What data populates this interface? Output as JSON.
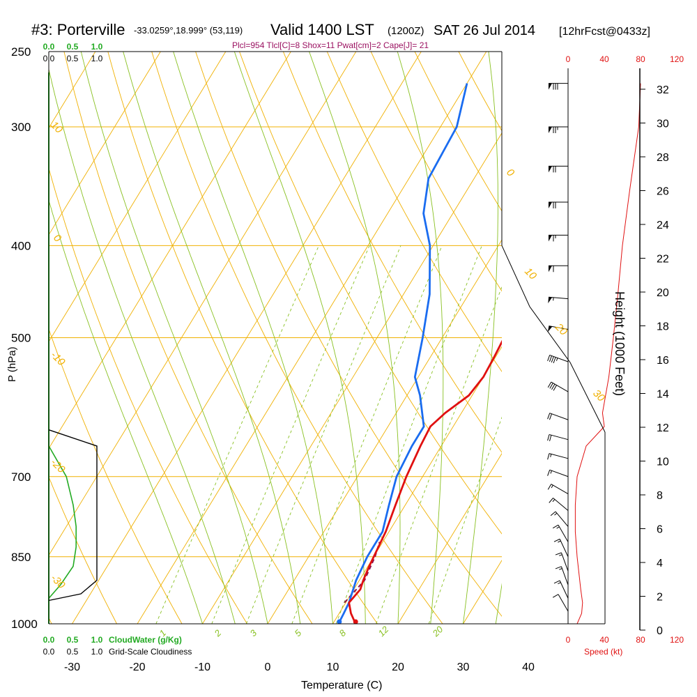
{
  "header": {
    "station": "#3: Porterville",
    "coords": "-33.0259°,18.999° (53,119)",
    "valid": "Valid 1400 LST",
    "utc": "(1200Z)",
    "date": "SAT 26 Jul 2014",
    "forecast": "[12hrFcst@0433z]",
    "indices": "Plcl=954 Tlcl[C]=8 Shox=11 Pwat[cm]=2 Cape[J]= 21"
  },
  "colors": {
    "temperature": "#e01010",
    "dewpoint": "#1a6cf0",
    "isotherm": "#f0b000",
    "dry_adiabat": "#f0b000",
    "moist_adiabat": "#88c020",
    "mixing_ratio": "#88c020",
    "cloud_water": "#22aa22",
    "speed": "#e01010",
    "barb": "#000000"
  },
  "cloud": {
    "water_label": "CloudWater (g/Kg)",
    "cloudiness_label": "Grid-Scale Cloudiness",
    "water_ticks": [
      "0.0",
      "0.5",
      "1.0"
    ],
    "cloudiness_ticks": [
      "0.0",
      "0.5",
      "1.0"
    ]
  },
  "speed_axis": {
    "label": "Speed (kt)",
    "ticks": [
      "0",
      "40",
      "80",
      "120"
    ]
  },
  "chart_data": {
    "type": "skew-t",
    "xlabel": "Temperature (C)",
    "ylabel": "P (hPa)",
    "y2label": "Height (1000 Feet)",
    "x_ticks": [
      -30,
      -20,
      -10,
      0,
      10,
      20,
      30,
      40
    ],
    "p_ticks": [
      250,
      300,
      400,
      500,
      700,
      850,
      1000
    ],
    "height_ticks": [
      0,
      2,
      4,
      6,
      8,
      10,
      12,
      14,
      16,
      18,
      20,
      22,
      24,
      26,
      28,
      30,
      32
    ],
    "temperature_profile": [
      {
        "p": 1000,
        "t": 13.5
      },
      {
        "p": 975,
        "t": 11.8
      },
      {
        "p": 950,
        "t": 10.5
      },
      {
        "p": 920,
        "t": 11.0
      },
      {
        "p": 900,
        "t": 10.6
      },
      {
        "p": 870,
        "t": 10.2
      },
      {
        "p": 850,
        "t": 10.0
      },
      {
        "p": 800,
        "t": 9.5
      },
      {
        "p": 750,
        "t": 8.5
      },
      {
        "p": 700,
        "t": 7.5
      },
      {
        "p": 650,
        "t": 6.8
      },
      {
        "p": 620,
        "t": 6.5
      },
      {
        "p": 600,
        "t": 7.5
      },
      {
        "p": 575,
        "t": 9.5
      },
      {
        "p": 550,
        "t": 10.0
      },
      {
        "p": 525,
        "t": 9.8
      },
      {
        "p": 500,
        "t": 9.5
      },
      {
        "p": 450,
        "t": 8.2
      },
      {
        "p": 400,
        "t": 6.0
      },
      {
        "p": 350,
        "t": 3.0
      },
      {
        "p": 300,
        "t": -1.0
      },
      {
        "p": 270,
        "t": -3.0
      }
    ],
    "dewpoint_profile": [
      {
        "p": 1000,
        "t": 11.0
      },
      {
        "p": 990,
        "t": 10.8
      },
      {
        "p": 975,
        "t": 10.7
      },
      {
        "p": 950,
        "t": 10.5
      },
      {
        "p": 900,
        "t": 9.5
      },
      {
        "p": 850,
        "t": 9.0
      },
      {
        "p": 800,
        "t": 9.0
      },
      {
        "p": 750,
        "t": 7.5
      },
      {
        "p": 700,
        "t": 6.0
      },
      {
        "p": 650,
        "t": 5.5
      },
      {
        "p": 620,
        "t": 5.5
      },
      {
        "p": 575,
        "t": 2.0
      },
      {
        "p": 550,
        "t": -0.5
      },
      {
        "p": 500,
        "t": -3.0
      },
      {
        "p": 450,
        "t": -6.0
      },
      {
        "p": 400,
        "t": -10.5
      },
      {
        "p": 370,
        "t": -14.5
      },
      {
        "p": 340,
        "t": -17.0
      },
      {
        "p": 300,
        "t": -17.5
      },
      {
        "p": 270,
        "t": -20.0
      }
    ],
    "parcel_profile": [
      {
        "p": 950,
        "t": 9.8
      },
      {
        "p": 900,
        "t": 10.8
      },
      {
        "p": 850,
        "t": 10.2
      },
      {
        "p": 820,
        "t": 9.5
      }
    ],
    "dry_adiabat_labels": [
      "-10",
      "0",
      "10",
      "20",
      "30",
      "10",
      "0",
      "-10",
      "-20",
      "-30"
    ],
    "mixing_ratio_labels": [
      "1",
      "2",
      "3",
      "5",
      "8",
      "12",
      "20"
    ],
    "wind_speed_kt": [
      {
        "p": 1000,
        "kt": 10
      },
      {
        "p": 975,
        "kt": 15
      },
      {
        "p": 950,
        "kt": 16
      },
      {
        "p": 920,
        "kt": 14
      },
      {
        "p": 850,
        "kt": 10
      },
      {
        "p": 800,
        "kt": 8
      },
      {
        "p": 750,
        "kt": 8
      },
      {
        "p": 700,
        "kt": 10
      },
      {
        "p": 650,
        "kt": 20
      },
      {
        "p": 620,
        "kt": 40
      },
      {
        "p": 600,
        "kt": 38
      },
      {
        "p": 550,
        "kt": 45
      },
      {
        "p": 500,
        "kt": 50
      },
      {
        "p": 450,
        "kt": 55
      },
      {
        "p": 400,
        "kt": 60
      },
      {
        "p": 350,
        "kt": 68
      },
      {
        "p": 300,
        "kt": 78
      },
      {
        "p": 270,
        "kt": 80
      }
    ],
    "cloud_water_gkg": [
      {
        "p": 650,
        "q": 0.0
      },
      {
        "p": 700,
        "q": 0.18
      },
      {
        "p": 750,
        "q": 0.25
      },
      {
        "p": 790,
        "q": 0.28
      },
      {
        "p": 830,
        "q": 0.28
      },
      {
        "p": 870,
        "q": 0.25
      },
      {
        "p": 910,
        "q": 0.12
      },
      {
        "p": 940,
        "q": 0.0
      }
    ],
    "cloudiness_fraction": [
      {
        "p": 625,
        "c": 0.0
      },
      {
        "p": 650,
        "c": 0.75
      },
      {
        "p": 700,
        "c": 0.75
      },
      {
        "p": 850,
        "c": 0.75
      },
      {
        "p": 900,
        "c": 0.75
      },
      {
        "p": 930,
        "c": 0.5
      },
      {
        "p": 945,
        "c": 0.0
      }
    ],
    "wind_barbs": [
      {
        "p": 270,
        "dir": 270,
        "kt": 80
      },
      {
        "p": 300,
        "dir": 270,
        "kt": 78
      },
      {
        "p": 330,
        "dir": 270,
        "kt": 74
      },
      {
        "p": 360,
        "dir": 270,
        "kt": 70
      },
      {
        "p": 390,
        "dir": 270,
        "kt": 65
      },
      {
        "p": 420,
        "dir": 270,
        "kt": 60
      },
      {
        "p": 455,
        "dir": 275,
        "kt": 55
      },
      {
        "p": 490,
        "dir": 280,
        "kt": 50
      },
      {
        "p": 530,
        "dir": 290,
        "kt": 45
      },
      {
        "p": 570,
        "dir": 300,
        "kt": 40
      },
      {
        "p": 610,
        "dir": 290,
        "kt": 20
      },
      {
        "p": 640,
        "dir": 285,
        "kt": 20
      },
      {
        "p": 670,
        "dir": 285,
        "kt": 15
      },
      {
        "p": 700,
        "dir": 290,
        "kt": 15
      },
      {
        "p": 730,
        "dir": 300,
        "kt": 15
      },
      {
        "p": 760,
        "dir": 310,
        "kt": 15
      },
      {
        "p": 790,
        "dir": 320,
        "kt": 15
      },
      {
        "p": 820,
        "dir": 330,
        "kt": 15
      },
      {
        "p": 850,
        "dir": 335,
        "kt": 15
      },
      {
        "p": 880,
        "dir": 340,
        "kt": 15
      },
      {
        "p": 910,
        "dir": 340,
        "kt": 15
      },
      {
        "p": 940,
        "dir": 335,
        "kt": 15
      },
      {
        "p": 970,
        "dir": 330,
        "kt": 10
      }
    ]
  }
}
